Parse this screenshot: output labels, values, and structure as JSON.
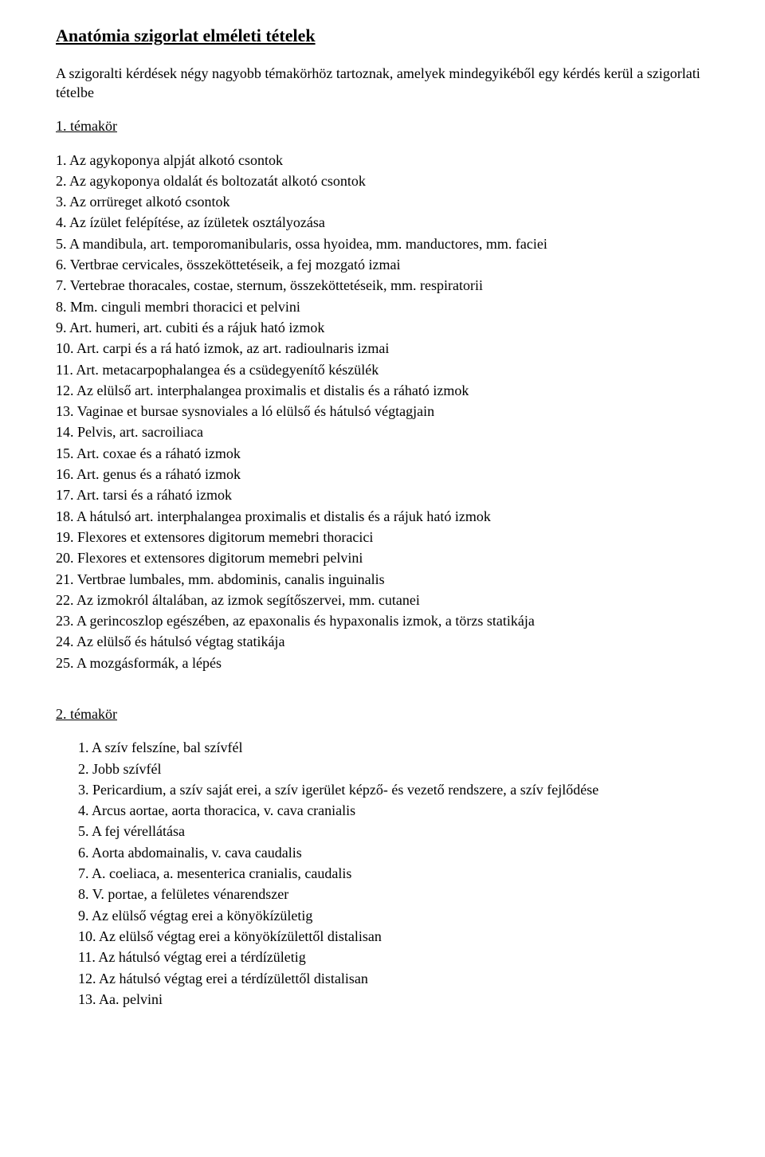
{
  "title": "Anatómia szigorlat elméleti tételek",
  "intro": "A szigoralti kérdések négy nagyobb témakörhöz tartoznak, amelyek mindegyikéből egy kérdés kerül a szigorlati tételbe",
  "section1": {
    "heading": "1. témakör",
    "items": [
      "Az agykoponya alpját alkotó csontok",
      "Az agykoponya oldalát és boltozatát alkotó csontok",
      "Az orrüreget alkotó csontok",
      "Az ízület felépítése, az ízületek osztályozása",
      "A mandibula, art. temporomanibularis, ossa hyoidea, mm. manductores, mm. faciei",
      "Vertbrae cervicales, összeköttetéseik, a fej mozgató izmai",
      "Vertebrae thoracales, costae, sternum, összeköttetéseik, mm. respiratorii",
      "Mm. cinguli membri thoracici et pelvini",
      "Art. humeri, art. cubiti és a rájuk ható izmok",
      "Art. carpi és a rá ható izmok, az art. radioulnaris izmai",
      "Art. metacarpophalangea és a csüdegyenítő készülék",
      "Az elülső art. interphalangea proximalis et distalis és a ráható izmok",
      "Vaginae et bursae sysnoviales a ló elülső és hátulsó végtagjain",
      "Pelvis, art. sacroiliaca",
      "Art. coxae és a ráható izmok",
      "Art. genus és a ráható izmok",
      "Art. tarsi és a ráható izmok",
      "A hátulsó art. interphalangea proximalis et distalis és a rájuk ható izmok",
      "Flexores et extensores digitorum memebri thoracici",
      "Flexores et extensores digitorum memebri pelvini",
      "Vertbrae lumbales, mm. abdominis, canalis inguinalis",
      "Az izmokról általában, az izmok segítőszervei, mm. cutanei",
      "A gerincoszlop egészében, az epaxonalis és hypaxonalis izmok, a törzs statikája",
      "Az elülső és hátulsó végtag statikája",
      "A mozgásformák, a lépés"
    ]
  },
  "section2": {
    "heading": "2. témakör",
    "items": [
      "A szív felszíne, bal szívfél",
      "Jobb szívfél",
      "Pericardium, a szív saját erei, a szív igerület képző- és vezető rendszere, a szív fejlődése",
      "Arcus aortae, aorta thoracica, v. cava cranialis",
      "A fej vérellátása",
      "Aorta abdomainalis, v. cava caudalis",
      "A. coeliaca, a. mesenterica cranialis, caudalis",
      "V. portae, a felületes vénarendszer",
      "Az elülső végtag erei a könyökízületig",
      "Az elülső végtag erei a könyökízülettől distalisan",
      "Az hátulsó végtag erei a térdízületig",
      "Az hátulsó végtag erei a térdízülettől distalisan",
      "Aa. pelvini"
    ]
  }
}
